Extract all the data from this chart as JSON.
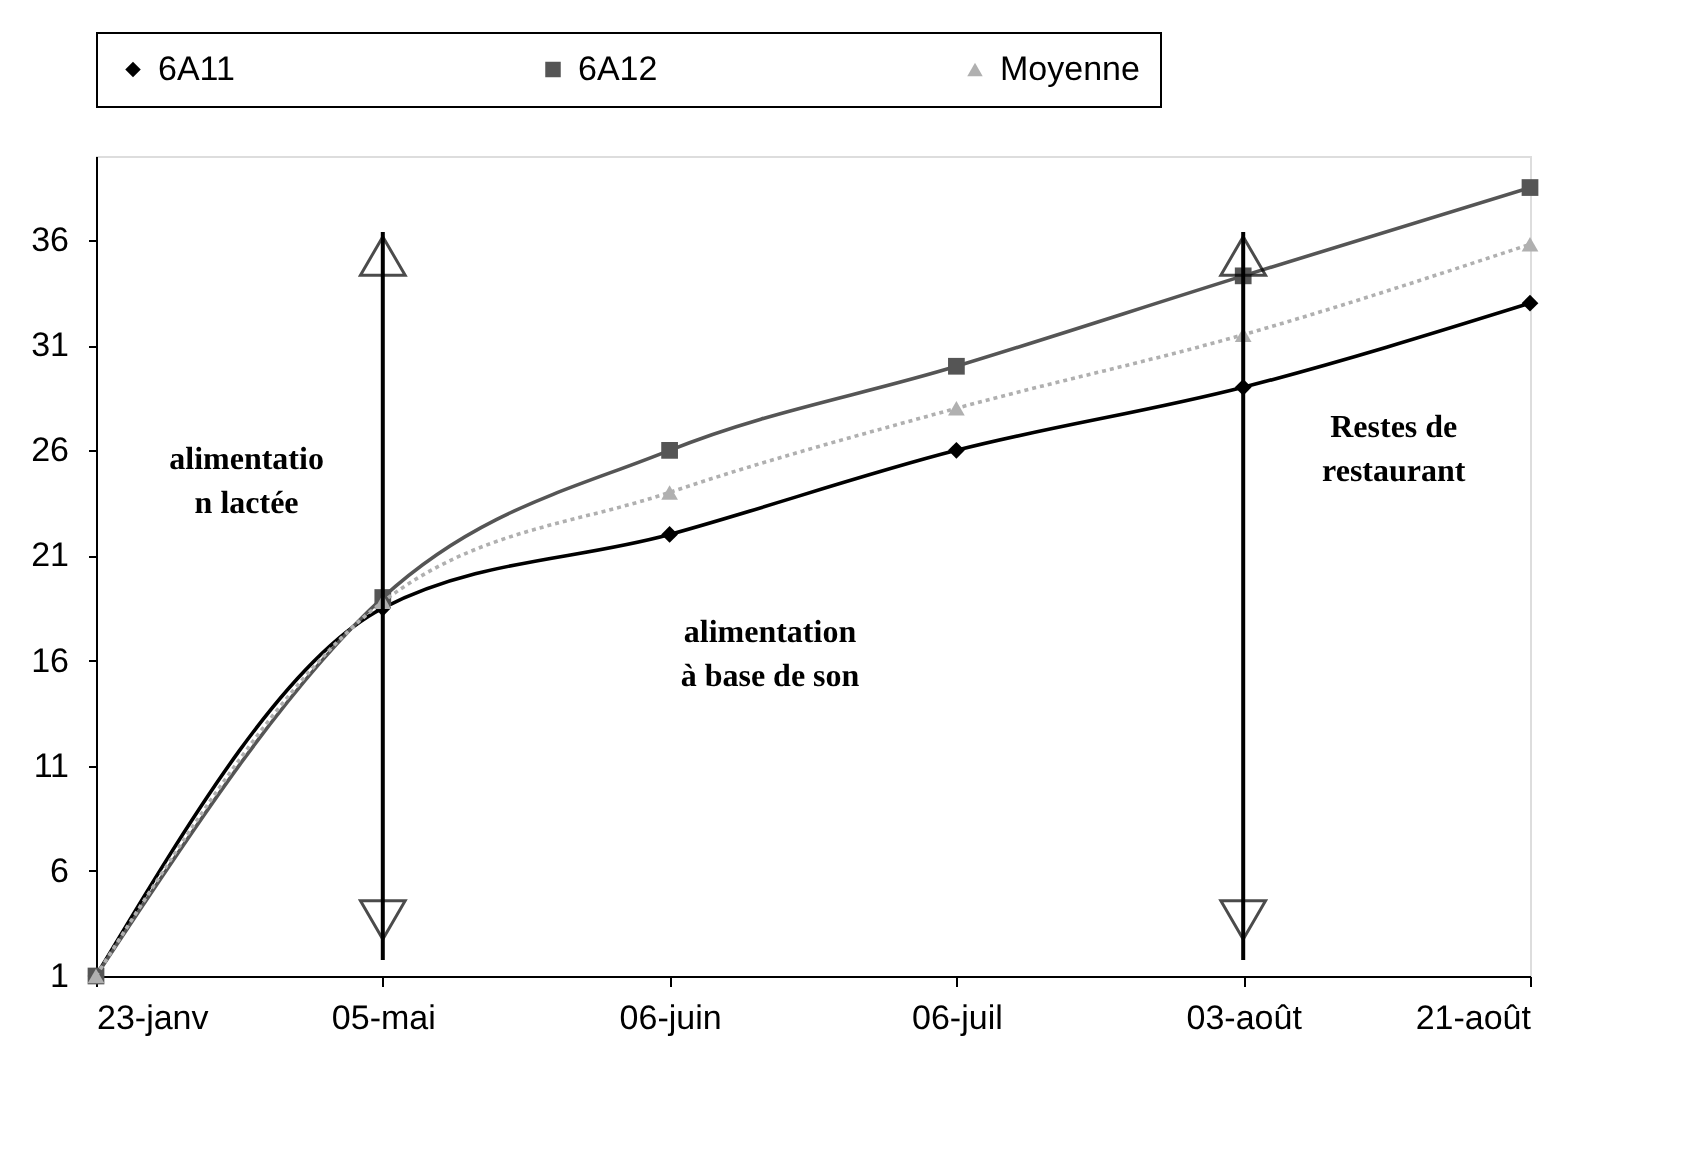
{
  "chart_data": {
    "type": "line",
    "categories": [
      "23-janv",
      "05-mai",
      "06-juin",
      "06-juil",
      "03-août",
      "21-août"
    ],
    "series": [
      {
        "name": "6A11",
        "color": "#000000",
        "marker": "diamond",
        "line_style": "solid",
        "values": [
          1,
          18.5,
          22,
          26,
          29,
          33
        ]
      },
      {
        "name": "6A12",
        "color": "#555555",
        "marker": "square",
        "line_style": "solid",
        "values": [
          1,
          19,
          26,
          30,
          34.3,
          38.5
        ]
      },
      {
        "name": "Moyenne",
        "color": "#b0b0b0",
        "marker": "triangle",
        "line_style": "dotted",
        "values": [
          1,
          18.8,
          24,
          28,
          31.5,
          35.8
        ]
      }
    ],
    "ylim": [
      1,
      40
    ],
    "yticks": [
      1,
      6,
      11,
      16,
      21,
      26,
      31,
      36
    ],
    "grid": false,
    "legend": "top",
    "ref_lines": [
      {
        "axis": "x",
        "value": "05-mai",
        "label": null,
        "color": "#000000"
      },
      {
        "axis": "x",
        "value": "03-août",
        "label": null,
        "color": "#000000"
      }
    ],
    "annotations": [
      "alimentatio\nn lactée",
      "alimentation\nà base de son",
      "Restes de\nrestaurant"
    ]
  }
}
